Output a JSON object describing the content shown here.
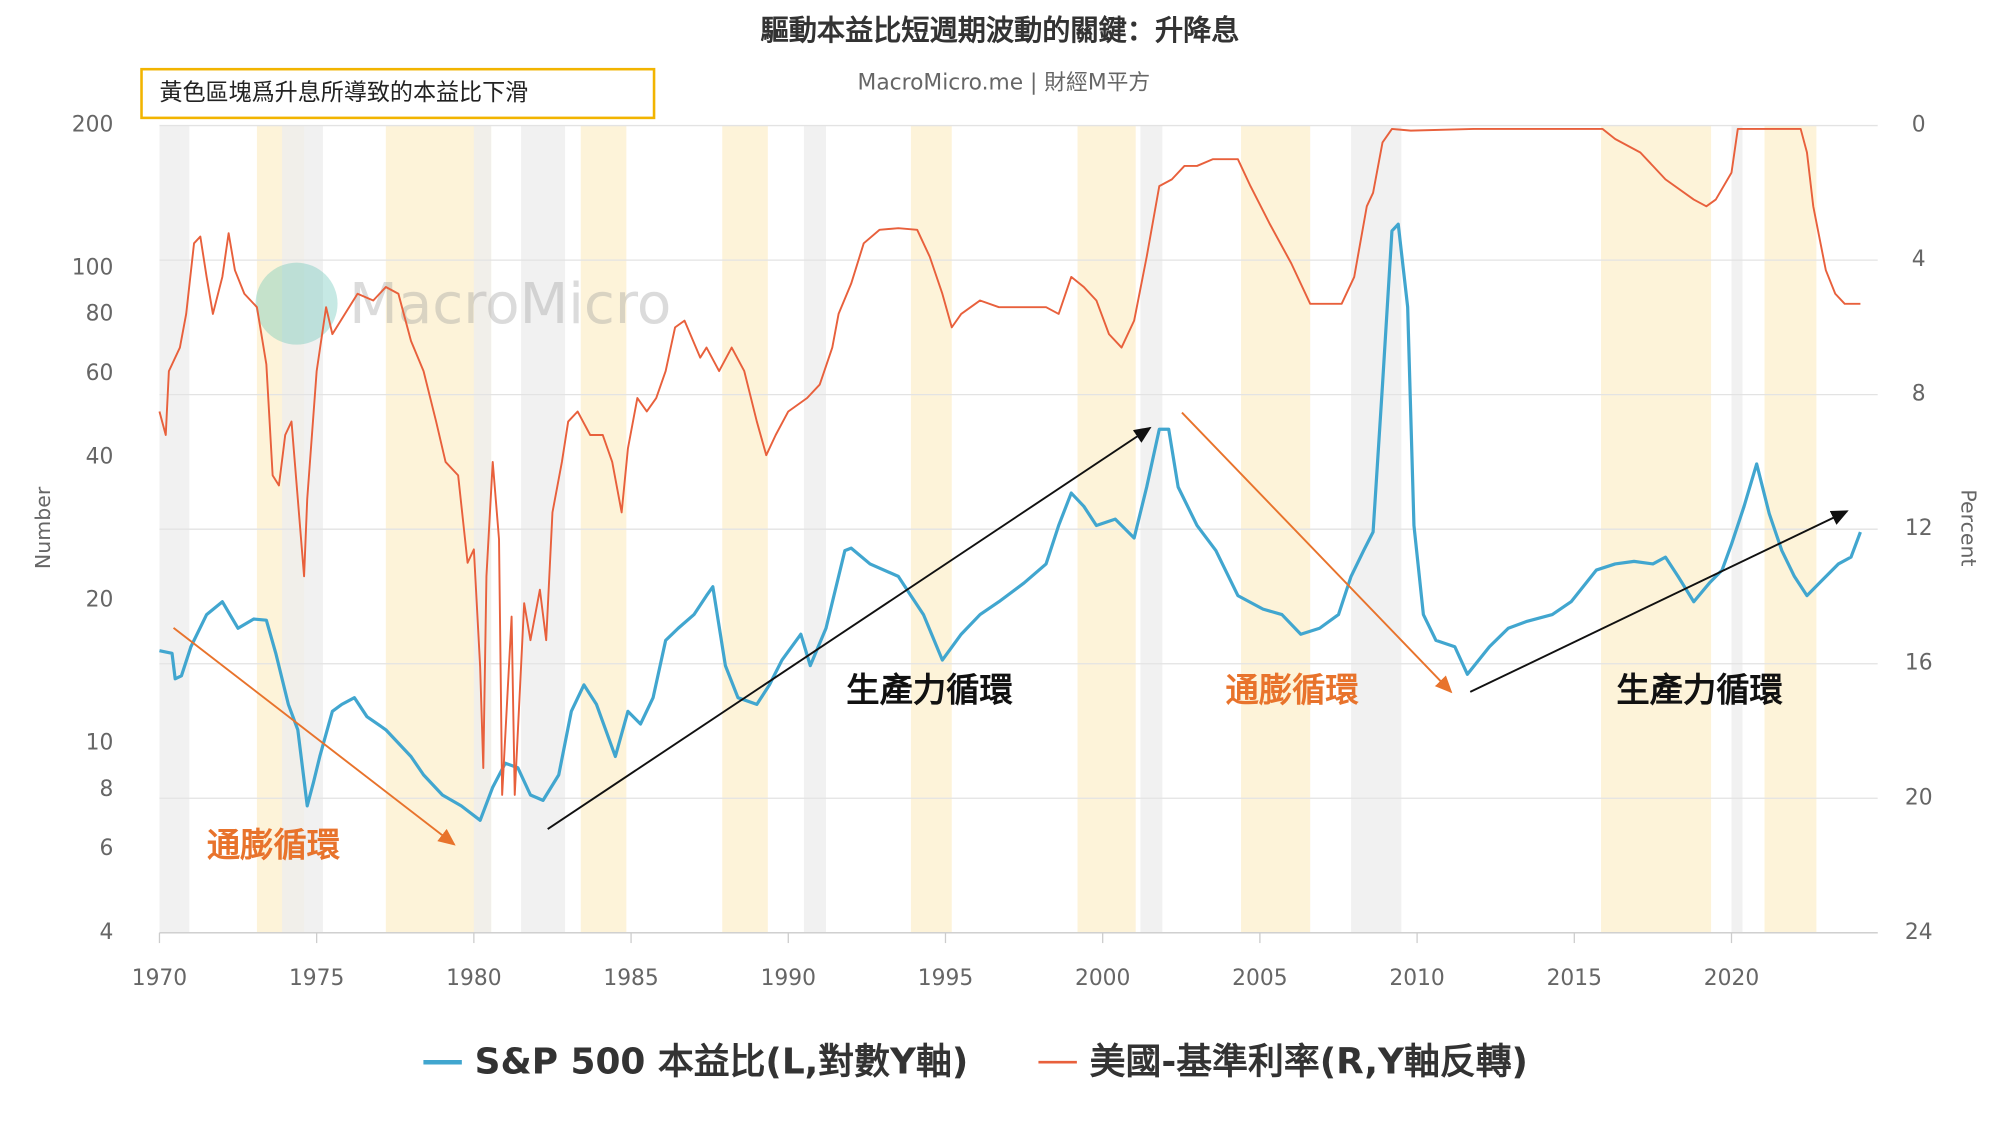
{
  "chart_data": {
    "type": "line",
    "title": "驅動本益比短週期波動的關鍵：升降息",
    "subtitle": "MacroMicro.me | 財經M平方",
    "note": "黃色區塊爲升息所導致的本益比下滑",
    "watermark": "MacroMicro",
    "y_label": "Number",
    "y2_label": "Percent",
    "annotations": [
      "通膨循環",
      "生產力循環",
      "通膨循環",
      "生產力循環"
    ],
    "xlim": [
      1970,
      2024.65
    ],
    "xticks": [
      1970,
      1975,
      1980,
      1985,
      1990,
      1995,
      2000,
      2005,
      2010,
      2015,
      2020
    ],
    "ylim": [
      4,
      200
    ],
    "ylog": true,
    "yticks": [
      4,
      6,
      8,
      10,
      20,
      40,
      60,
      80,
      100,
      200
    ],
    "y2lim": [
      0,
      24
    ],
    "y2_reversed": true,
    "y2ticks": [
      0,
      4,
      8,
      12,
      16,
      20,
      24
    ],
    "grid": true,
    "recession_color": "#eeeeee",
    "recessions": [
      [
        1970.0,
        1970.95
      ],
      [
        1973.9,
        1975.2
      ],
      [
        1980.0,
        1980.55
      ],
      [
        1981.5,
        1982.9
      ],
      [
        1990.5,
        1991.2
      ],
      [
        2001.2,
        2001.9
      ],
      [
        2007.9,
        2009.5
      ],
      [
        2020.0,
        2020.35
      ]
    ],
    "hike_color": "#fdf0cf",
    "hike_periods": [
      [
        1973.1,
        1974.6
      ],
      [
        1977.2,
        1980.55
      ],
      [
        1983.4,
        1984.85
      ],
      [
        1987.9,
        1989.35
      ],
      [
        1993.9,
        1995.2
      ],
      [
        1999.2,
        2001.05
      ],
      [
        2004.4,
        2006.6
      ],
      [
        2015.85,
        2019.35
      ],
      [
        2021.05,
        2022.7
      ]
    ],
    "series": [
      {
        "name": "S&P 500 本益比(L,對數Y軸)",
        "color": "#41a6cf",
        "axis": "y",
        "x": [
          1970.0,
          1970.4,
          1970.5,
          1970.7,
          1971.0,
          1971.5,
          1972.0,
          1972.5,
          1973.0,
          1973.4,
          1973.7,
          1974.1,
          1974.4,
          1974.7,
          1974.9,
          1975.1,
          1975.5,
          1975.8,
          1976.2,
          1976.6,
          1977.2,
          1978.0,
          1978.4,
          1979.0,
          1979.6,
          1980.2,
          1980.6,
          1981.0,
          1981.4,
          1981.8,
          1982.2,
          1982.7,
          1983.1,
          1983.5,
          1983.9,
          1984.5,
          1984.9,
          1985.3,
          1985.7,
          1986.1,
          1986.5,
          1987.0,
          1987.4,
          1987.6,
          1988.0,
          1988.4,
          1989.0,
          1989.4,
          1989.8,
          1990.4,
          1990.7,
          1991.2,
          1991.8,
          1992.0,
          1992.6,
          1993.5,
          1993.9,
          1994.3,
          1994.9,
          1995.5,
          1996.1,
          1996.7,
          1997.5,
          1998.2,
          1998.6,
          1999.0,
          1999.4,
          1999.8,
          2000.4,
          2001.0,
          2001.4,
          2001.8,
          2002.1,
          2002.4,
          2003.0,
          2003.6,
          2004.3,
          2005.1,
          2005.7,
          2006.3,
          2006.9,
          2007.5,
          2007.9,
          2008.3,
          2008.6,
          2008.9,
          2009.2,
          2009.4,
          2009.7,
          2009.9,
          2010.2,
          2010.6,
          2011.2,
          2011.6,
          2012.3,
          2012.9,
          2013.5,
          2014.3,
          2014.9,
          2015.7,
          2016.3,
          2016.9,
          2017.5,
          2017.9,
          2018.3,
          2018.8,
          2019.3,
          2019.7,
          2020.0,
          2020.4,
          2020.8,
          2021.2,
          2021.6,
          2022.0,
          2022.4,
          2022.8,
          2023.4,
          2023.8,
          2024.1
        ],
        "values": [
          15.7,
          15.5,
          13.7,
          13.9,
          16.0,
          18.7,
          19.9,
          17.5,
          18.3,
          18.2,
          15.5,
          12.1,
          10.7,
          7.4,
          8.3,
          9.4,
          11.7,
          12.1,
          12.5,
          11.4,
          10.7,
          9.4,
          8.6,
          7.8,
          7.4,
          6.9,
          8.1,
          9.1,
          8.9,
          7.8,
          7.6,
          8.6,
          11.7,
          13.3,
          12.1,
          9.4,
          11.7,
          11.0,
          12.5,
          16.5,
          17.5,
          18.7,
          20.5,
          21.4,
          14.6,
          12.5,
          12.1,
          13.3,
          15.0,
          17.0,
          14.6,
          17.5,
          25.5,
          25.8,
          23.9,
          22.5,
          20.5,
          18.7,
          15.0,
          17.0,
          18.7,
          19.9,
          21.8,
          23.9,
          28.8,
          33.7,
          31.6,
          28.8,
          29.7,
          27.1,
          34.7,
          45.9,
          45.9,
          34.7,
          28.8,
          25.5,
          20.5,
          19.2,
          18.7,
          17.0,
          17.5,
          18.7,
          22.5,
          25.5,
          27.9,
          57,
          120,
          124,
          83,
          28.8,
          18.7,
          16.5,
          16.0,
          14.0,
          16.0,
          17.5,
          18.1,
          18.7,
          19.9,
          23.2,
          23.9,
          24.2,
          23.9,
          24.7,
          22.5,
          19.9,
          21.8,
          23.2,
          26.3,
          31.6,
          38.8,
          30.5,
          25.5,
          22.5,
          20.5,
          21.8,
          23.9,
          24.7,
          27.9
        ]
      },
      {
        "name": "美國-基準利率(R,Y軸反轉)",
        "color": "#e8603c",
        "axis": "y2",
        "x": [
          1970.0,
          1970.2,
          1970.3,
          1970.65,
          1970.85,
          1971.1,
          1971.3,
          1971.5,
          1971.7,
          1972.0,
          1972.2,
          1972.4,
          1972.7,
          1973.1,
          1973.4,
          1973.6,
          1973.8,
          1974.0,
          1974.2,
          1974.4,
          1974.6,
          1974.7,
          1975.0,
          1975.3,
          1975.5,
          1975.9,
          1976.3,
          1976.8,
          1977.2,
          1977.6,
          1978.0,
          1978.4,
          1978.8,
          1979.1,
          1979.5,
          1979.8,
          1980.0,
          1980.2,
          1980.3,
          1980.4,
          1980.6,
          1980.8,
          1980.9,
          1981.2,
          1981.3,
          1981.6,
          1981.8,
          1982.1,
          1982.3,
          1982.5,
          1982.8,
          1983.0,
          1983.3,
          1983.7,
          1984.1,
          1984.4,
          1984.7,
          1984.9,
          1985.2,
          1985.5,
          1985.8,
          1986.1,
          1986.4,
          1986.7,
          1987.2,
          1987.4,
          1987.8,
          1988.2,
          1988.6,
          1989.0,
          1989.3,
          1989.6,
          1990.0,
          1990.6,
          1991.0,
          1991.4,
          1991.6,
          1992.0,
          1992.4,
          1992.9,
          1993.5,
          1994.1,
          1994.5,
          1994.9,
          1995.2,
          1995.5,
          1996.1,
          1996.7,
          1997.3,
          1998.2,
          1998.6,
          1999.0,
          1999.4,
          1999.8,
          2000.2,
          2000.6,
          2001.0,
          2001.4,
          2001.8,
          2002.2,
          2002.6,
          2003.0,
          2003.5,
          2004.3,
          2004.7,
          2005.3,
          2006.0,
          2006.6,
          2007.6,
          2008.0,
          2008.4,
          2008.6,
          2008.9,
          2009.2,
          2009.8,
          2011.8,
          2015.9,
          2016.3,
          2017.1,
          2017.9,
          2018.8,
          2019.2,
          2019.5,
          2020.0,
          2020.2,
          2022.2,
          2022.4,
          2022.6,
          2023.0,
          2023.3,
          2023.6,
          2024.1
        ],
        "values": [
          8.5,
          9.2,
          7.3,
          6.6,
          5.6,
          3.5,
          3.3,
          4.5,
          5.6,
          4.5,
          3.2,
          4.3,
          5.0,
          5.4,
          7.1,
          10.4,
          10.7,
          9.2,
          8.8,
          11.1,
          13.4,
          11.1,
          7.3,
          5.4,
          6.2,
          5.6,
          5.0,
          5.2,
          4.8,
          5.0,
          6.4,
          7.3,
          8.8,
          10.0,
          10.4,
          13.0,
          12.6,
          16.1,
          19.1,
          13.4,
          10.0,
          12.3,
          19.9,
          14.6,
          19.9,
          14.2,
          15.3,
          13.8,
          15.3,
          11.5,
          10.0,
          8.8,
          8.5,
          9.2,
          9.2,
          10.0,
          11.5,
          9.6,
          8.1,
          8.5,
          8.1,
          7.3,
          6.0,
          5.8,
          6.9,
          6.6,
          7.3,
          6.6,
          7.3,
          8.8,
          9.8,
          9.2,
          8.5,
          8.1,
          7.7,
          6.6,
          5.6,
          4.7,
          3.5,
          3.1,
          3.05,
          3.1,
          3.9,
          5.0,
          6.0,
          5.6,
          5.2,
          5.4,
          5.4,
          5.4,
          5.6,
          4.5,
          4.8,
          5.2,
          6.2,
          6.6,
          5.8,
          3.9,
          1.8,
          1.6,
          1.2,
          1.2,
          1.0,
          1.0,
          1.8,
          2.9,
          4.1,
          5.3,
          5.3,
          4.5,
          2.4,
          2.0,
          0.5,
          0.1,
          0.15,
          0.1,
          0.1,
          0.4,
          0.8,
          1.6,
          2.2,
          2.4,
          2.2,
          1.4,
          0.1,
          0.1,
          0.8,
          2.4,
          4.3,
          5.0,
          5.3,
          5.3
        ]
      }
    ]
  }
}
